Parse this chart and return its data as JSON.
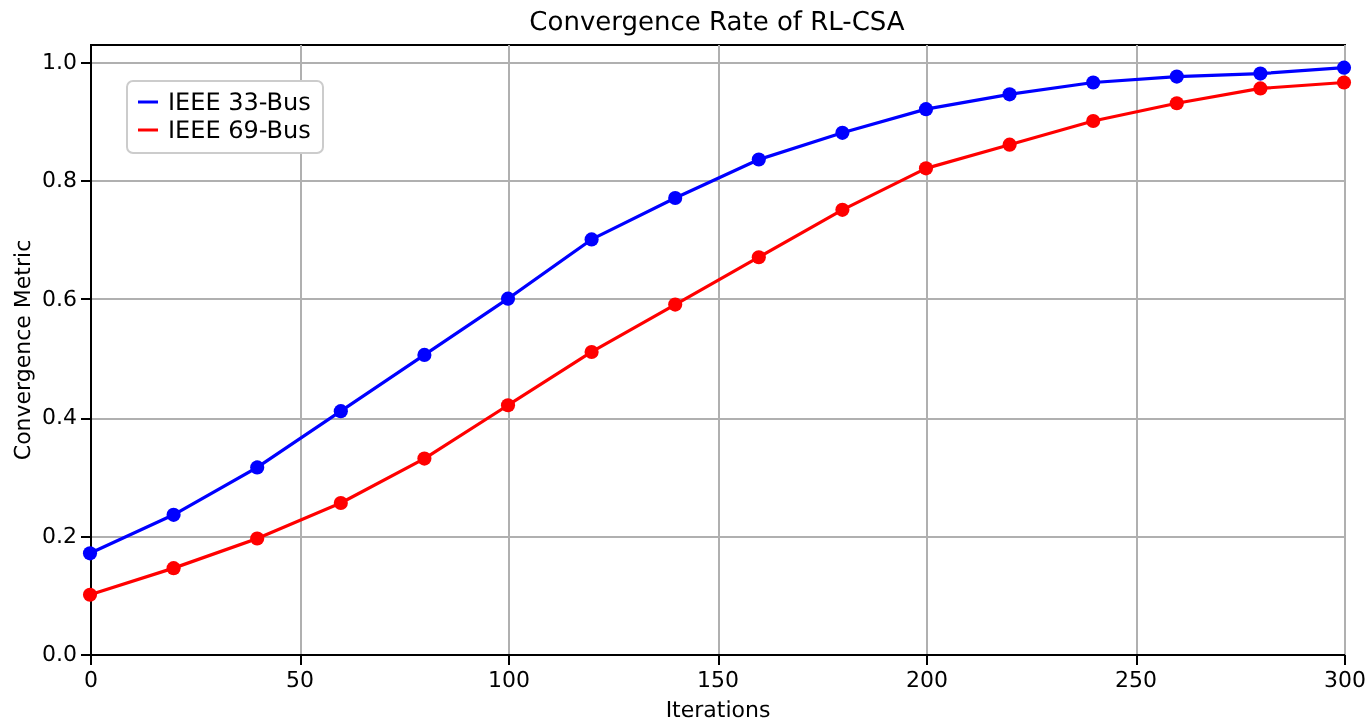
{
  "chart_data": {
    "type": "line",
    "title": "Convergence Rate of RL-CSA",
    "xlabel": "Iterations",
    "ylabel": "Convergence Metric",
    "x": [
      0,
      20,
      40,
      60,
      80,
      100,
      120,
      140,
      160,
      180,
      200,
      220,
      240,
      260,
      280,
      300
    ],
    "series": [
      {
        "name": "IEEE 33-Bus",
        "color": "#0000ff",
        "values": [
          0.17,
          0.235,
          0.315,
          0.41,
          0.505,
          0.6,
          0.7,
          0.77,
          0.835,
          0.88,
          0.92,
          0.945,
          0.965,
          0.975,
          0.98,
          0.99
        ]
      },
      {
        "name": "IEEE 69-Bus",
        "color": "#ff0000",
        "values": [
          0.1,
          0.145,
          0.195,
          0.255,
          0.33,
          0.42,
          0.51,
          0.59,
          0.67,
          0.75,
          0.82,
          0.86,
          0.9,
          0.93,
          0.955,
          0.965
        ]
      }
    ],
    "xlim": [
      0,
      300
    ],
    "xticks": [
      0,
      50,
      100,
      150,
      200,
      250,
      300
    ],
    "ylim": [
      0,
      1.03
    ],
    "yticks": [
      {
        "value": 0,
        "label": "0.0"
      },
      0.2,
      0.4,
      0.6,
      0.8,
      {
        "value": 1,
        "label": "1.0"
      }
    ],
    "grid": true,
    "legend": "top left",
    "marker": "circle",
    "line_style": "solid"
  }
}
